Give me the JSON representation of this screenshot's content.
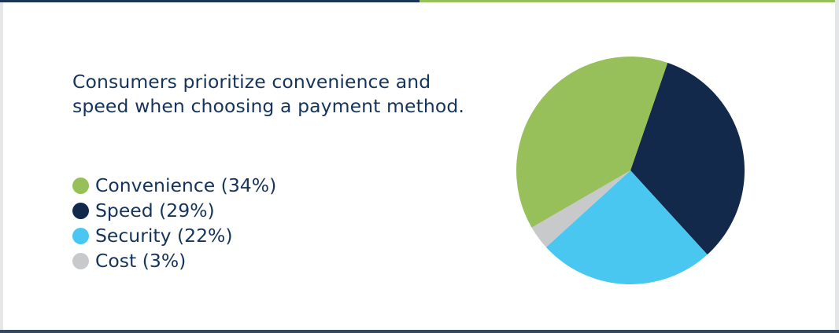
{
  "headline": "Consumers prioritize convenience and speed when choosing a payment method.",
  "chart_data": {
    "type": "pie",
    "categories": [
      "Convenience",
      "Speed",
      "Security",
      "Cost"
    ],
    "values": [
      34,
      29,
      22,
      3
    ],
    "unit": "%",
    "legend": [
      {
        "label": "Convenience (34%)",
        "color": "#97c05a"
      },
      {
        "label": "Speed (29%)",
        "color": "#13294b"
      },
      {
        "label": "Security (22%)",
        "color": "#4ac7f0"
      },
      {
        "label": "Cost (3%)",
        "color": "#c8c9cb"
      }
    ],
    "colors": [
      "#97c05a",
      "#13294b",
      "#4ac7f0",
      "#c8c9cb"
    ],
    "legend_placement": "left"
  }
}
